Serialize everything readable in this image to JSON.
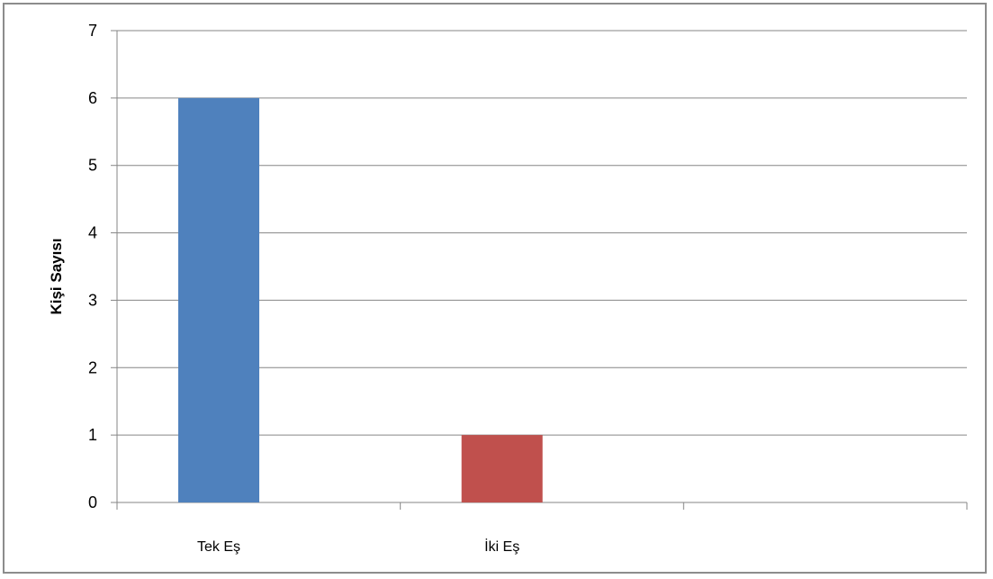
{
  "chart_data": {
    "type": "bar",
    "title": "",
    "xlabel": "",
    "ylabel": "Kişi Sayısı",
    "ylim": [
      0,
      7
    ],
    "yticks": [
      0,
      1,
      2,
      3,
      4,
      5,
      6,
      7
    ],
    "categories": [
      "Tek Eş",
      "İki Eş",
      ""
    ],
    "values": [
      6,
      1,
      null
    ],
    "bar_colors": [
      "#4f81bd",
      "#c0504d"
    ],
    "grid": true,
    "legend": "none"
  }
}
